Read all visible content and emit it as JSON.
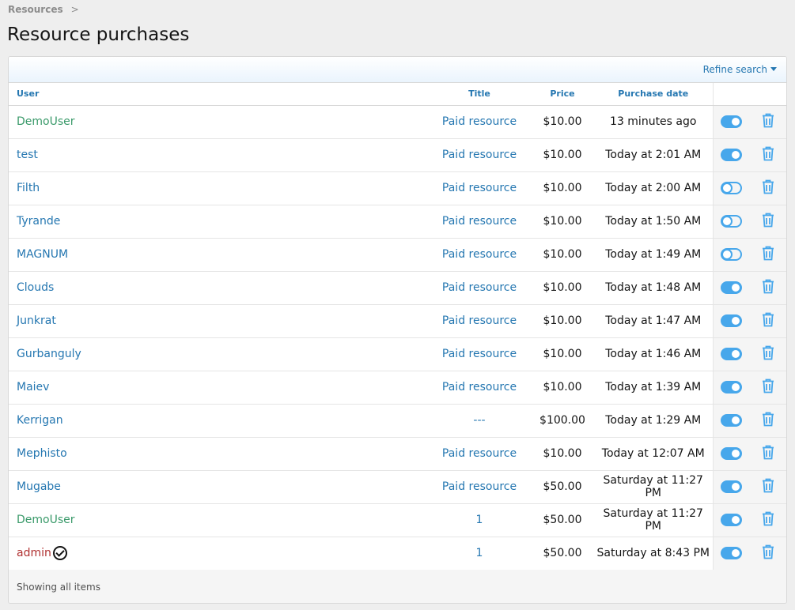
{
  "breadcrumb": {
    "label": "Resources",
    "sep": ">"
  },
  "page_title": "Resource purchases",
  "filter": {
    "refine_label": "Refine search"
  },
  "columns": {
    "user": "User",
    "title": "Title",
    "price": "Price",
    "date": "Purchase date"
  },
  "rows": [
    {
      "user": "DemoUser",
      "user_style": "green",
      "title": "Paid resource",
      "price": "$10.00",
      "date": "13 minutes ago",
      "active": true
    },
    {
      "user": "test",
      "user_style": "link",
      "title": "Paid resource",
      "price": "$10.00",
      "date": "Today at 2:01 AM",
      "active": true
    },
    {
      "user": "Filth",
      "user_style": "link",
      "title": "Paid resource",
      "price": "$10.00",
      "date": "Today at 2:00 AM",
      "active": false
    },
    {
      "user": "Tyrande",
      "user_style": "link",
      "title": "Paid resource",
      "price": "$10.00",
      "date": "Today at 1:50 AM",
      "active": false
    },
    {
      "user": "MAGNUM",
      "user_style": "link",
      "title": "Paid resource",
      "price": "$10.00",
      "date": "Today at 1:49 AM",
      "active": false
    },
    {
      "user": "Clouds",
      "user_style": "link",
      "title": "Paid resource",
      "price": "$10.00",
      "date": "Today at 1:48 AM",
      "active": true
    },
    {
      "user": "Junkrat",
      "user_style": "link",
      "title": "Paid resource",
      "price": "$10.00",
      "date": "Today at 1:47 AM",
      "active": true
    },
    {
      "user": "Gurbanguly",
      "user_style": "link",
      "title": "Paid resource",
      "price": "$10.00",
      "date": "Today at 1:46 AM",
      "active": true
    },
    {
      "user": "Maiev",
      "user_style": "link",
      "title": "Paid resource",
      "price": "$10.00",
      "date": "Today at 1:39 AM",
      "active": true
    },
    {
      "user": "Kerrigan",
      "user_style": "link",
      "title": "---",
      "price": "$100.00",
      "date": "Today at 1:29 AM",
      "active": true
    },
    {
      "user": "Mephisto",
      "user_style": "link",
      "title": "Paid resource",
      "price": "$10.00",
      "date": "Today at 12:07 AM",
      "active": true
    },
    {
      "user": "Mugabe",
      "user_style": "link",
      "title": "Paid resource",
      "price": "$50.00",
      "date": "Saturday at 11:27 PM",
      "active": true
    },
    {
      "user": "DemoUser",
      "user_style": "green",
      "title": "1",
      "price": "$50.00",
      "date": "Saturday at 11:27 PM",
      "active": true
    },
    {
      "user": "admin",
      "user_style": "red",
      "verified": true,
      "title": "1",
      "price": "$50.00",
      "date": "Saturday at 8:43 PM",
      "active": true
    }
  ],
  "footer": "Showing all items",
  "colors": {
    "link": "#2577b1",
    "toggle": "#47a7eb",
    "green": "#3a9a6a",
    "red": "#b03030"
  }
}
